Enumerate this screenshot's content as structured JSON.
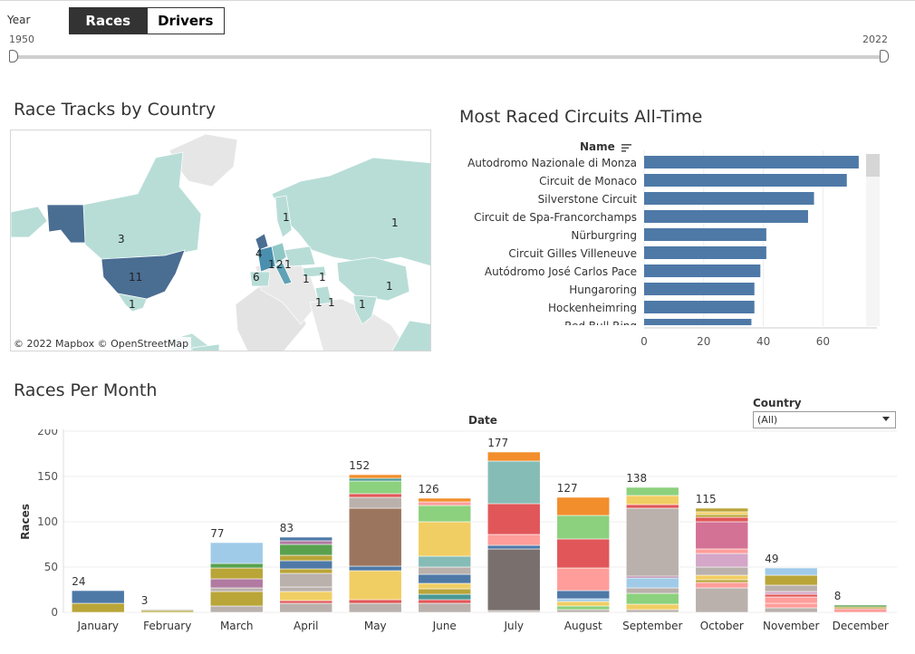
{
  "header": {
    "year_label": "Year",
    "tabs": [
      {
        "label": "Races",
        "active": true
      },
      {
        "label": "Drivers",
        "active": false
      }
    ],
    "slider": {
      "min_label": "1950",
      "max_label": "2022",
      "min": 1950,
      "max": 2022,
      "selected": [
        1950,
        2022
      ]
    }
  },
  "map": {
    "title": "Race Tracks by Country",
    "attribution": "© 2022 Mapbox  © OpenStreetMap",
    "labels": [
      "3",
      "11",
      "1",
      "1",
      "1",
      "4",
      "6",
      "1",
      "2",
      "1",
      "1",
      "1",
      "1",
      "1",
      "1",
      "1"
    ]
  },
  "colors": {
    "bar_blue": "#4e79a7",
    "map_light": "#b8ddd7",
    "map_mid": "#5fa2b6",
    "map_dark": "#4a6d92"
  },
  "circuits": {
    "title": "Most Raced Circuits All-Time",
    "name_header": "Name",
    "sort_icon": "sort-desc-icon"
  },
  "months": {
    "title": "Races Per Month",
    "date_header": "Date",
    "country_filter": {
      "label": "Country",
      "value": "(All)"
    }
  },
  "chart_data": [
    {
      "type": "bar",
      "orientation": "horizontal",
      "title": "Most Raced Circuits All-Time",
      "categories": [
        "Autodromo Nazionale di Monza",
        "Circuit de Monaco",
        "Silverstone Circuit",
        "Circuit de Spa-Francorchamps",
        "Nürburgring",
        "Circuit Gilles Villeneuve",
        "Autódromo José Carlos Pace",
        "Hungaroring",
        "Hockenheimring",
        "Red Bull Ring"
      ],
      "values": [
        72,
        68,
        57,
        55,
        41,
        41,
        39,
        37,
        37,
        36
      ],
      "xlim": [
        0,
        80
      ],
      "ticks": [
        "0",
        "20",
        "40",
        "60"
      ],
      "color": "#4e79a7"
    },
    {
      "type": "bar",
      "stacked": true,
      "title": "Races Per Month",
      "xlabel": "Date",
      "ylabel": "Races",
      "ylim": [
        0,
        200
      ],
      "ticks": [
        "0",
        "50",
        "100",
        "150",
        "200"
      ],
      "categories": [
        "January",
        "February",
        "March",
        "April",
        "May",
        "June",
        "July",
        "August",
        "September",
        "October",
        "November",
        "December"
      ],
      "totals": [
        "24",
        "3",
        "77",
        "83",
        "152",
        "126",
        "177",
        "127",
        "138",
        "115",
        "49",
        "8"
      ],
      "segments": [
        [
          {
            "v": 10,
            "c": "#b9a538"
          },
          {
            "v": 14,
            "c": "#4e79a7"
          }
        ],
        [
          {
            "v": 2,
            "c": "#b9a538"
          },
          {
            "v": 1,
            "c": "#8e8e8e"
          }
        ],
        [
          {
            "v": 7,
            "c": "#bab0ac"
          },
          {
            "v": 16,
            "c": "#b9a538"
          },
          {
            "v": 4,
            "c": "#bab0ac"
          },
          {
            "v": 10,
            "c": "#b07aa1"
          },
          {
            "v": 12,
            "c": "#b9a538"
          },
          {
            "v": 5,
            "c": "#59a14f"
          },
          {
            "v": 23,
            "c": "#a0cbe8"
          }
        ],
        [
          {
            "v": 10,
            "c": "#bab0ac"
          },
          {
            "v": 3,
            "c": "#e15759"
          },
          {
            "v": 10,
            "c": "#f1ce63"
          },
          {
            "v": 5,
            "c": "#bab0ac"
          },
          {
            "v": 15,
            "c": "#bab0ac"
          },
          {
            "v": 5,
            "c": "#b9a538"
          },
          {
            "v": 9,
            "c": "#4e79a7"
          },
          {
            "v": 6,
            "c": "#b9a538"
          },
          {
            "v": 12,
            "c": "#59a14f"
          },
          {
            "v": 4,
            "c": "#b07aa1"
          },
          {
            "v": 4,
            "c": "#4e79a7"
          }
        ],
        [
          {
            "v": 10,
            "c": "#bab0ac"
          },
          {
            "v": 4,
            "c": "#e15759"
          },
          {
            "v": 32,
            "c": "#f1ce63"
          },
          {
            "v": 5,
            "c": "#4e79a7"
          },
          {
            "v": 64,
            "c": "#9c755f"
          },
          {
            "v": 12,
            "c": "#bab0ac"
          },
          {
            "v": 4,
            "c": "#e15759"
          },
          {
            "v": 14,
            "c": "#8cd17d"
          },
          {
            "v": 3,
            "c": "#499894"
          },
          {
            "v": 4,
            "c": "#f28e2b"
          }
        ],
        [
          {
            "v": 10,
            "c": "#bab0ac"
          },
          {
            "v": 4,
            "c": "#e15759"
          },
          {
            "v": 6,
            "c": "#499894"
          },
          {
            "v": 6,
            "c": "#b9a538"
          },
          {
            "v": 6,
            "c": "#f1ce63"
          },
          {
            "v": 10,
            "c": "#4e79a7"
          },
          {
            "v": 8,
            "c": "#bab0ac"
          },
          {
            "v": 12,
            "c": "#86bcb6"
          },
          {
            "v": 38,
            "c": "#f1ce63"
          },
          {
            "v": 18,
            "c": "#8cd17d"
          },
          {
            "v": 4,
            "c": "#ff9d9a"
          },
          {
            "v": 4,
            "c": "#f28e2b"
          }
        ],
        [
          {
            "v": 2,
            "c": "#bab0ac"
          },
          {
            "v": 68,
            "c": "#79706e"
          },
          {
            "v": 4,
            "c": "#4e79a7"
          },
          {
            "v": 12,
            "c": "#ff9d9a"
          },
          {
            "v": 34,
            "c": "#e15759"
          },
          {
            "v": 47,
            "c": "#86bcb6"
          },
          {
            "v": 10,
            "c": "#f28e2b"
          }
        ],
        [
          {
            "v": 3,
            "c": "#bab0ac"
          },
          {
            "v": 4,
            "c": "#8cd17d"
          },
          {
            "v": 5,
            "c": "#f1ce63"
          },
          {
            "v": 3,
            "c": "#a0cbe8"
          },
          {
            "v": 9,
            "c": "#4e79a7"
          },
          {
            "v": 25,
            "c": "#ff9d9a"
          },
          {
            "v": 32,
            "c": "#e15759"
          },
          {
            "v": 26,
            "c": "#8cd17d"
          },
          {
            "v": 20,
            "c": "#f28e2b"
          }
        ],
        [
          {
            "v": 3,
            "c": "#bab0ac"
          },
          {
            "v": 6,
            "c": "#f1ce63"
          },
          {
            "v": 12,
            "c": "#8cd17d"
          },
          {
            "v": 6,
            "c": "#bab0ac"
          },
          {
            "v": 11,
            "c": "#a0cbe8"
          },
          {
            "v": 2,
            "c": "#b07aa1"
          },
          {
            "v": 75,
            "c": "#bab0ac"
          },
          {
            "v": 4,
            "c": "#e15759"
          },
          {
            "v": 10,
            "c": "#f1ce63"
          },
          {
            "v": 9,
            "c": "#8cd17d"
          }
        ],
        [
          {
            "v": 27,
            "c": "#bab0ac"
          },
          {
            "v": 6,
            "c": "#ff9d9a"
          },
          {
            "v": 3,
            "c": "#b9a538"
          },
          {
            "v": 5,
            "c": "#f1ce63"
          },
          {
            "v": 9,
            "c": "#bab0ac"
          },
          {
            "v": 15,
            "c": "#d4a6c8"
          },
          {
            "v": 5,
            "c": "#ff9d9a"
          },
          {
            "v": 30,
            "c": "#d37295"
          },
          {
            "v": 5,
            "c": "#e15759"
          },
          {
            "v": 3,
            "c": "#b9a538"
          },
          {
            "v": 3,
            "c": "#f1ce63"
          },
          {
            "v": 4,
            "c": "#b9a538"
          }
        ],
        [
          {
            "v": 5,
            "c": "#bab0ac"
          },
          {
            "v": 5,
            "c": "#ff9d9a"
          },
          {
            "v": 7,
            "c": "#ff9d9a"
          },
          {
            "v": 3,
            "c": "#e15759"
          },
          {
            "v": 3,
            "c": "#d4a6c8"
          },
          {
            "v": 7,
            "c": "#bab0ac"
          },
          {
            "v": 11,
            "c": "#b9a538"
          },
          {
            "v": 8,
            "c": "#a0cbe8"
          }
        ],
        [
          {
            "v": 4,
            "c": "#ff9d9a"
          },
          {
            "v": 2,
            "c": "#b9a538"
          },
          {
            "v": 2,
            "c": "#59a14f"
          }
        ]
      ]
    }
  ]
}
